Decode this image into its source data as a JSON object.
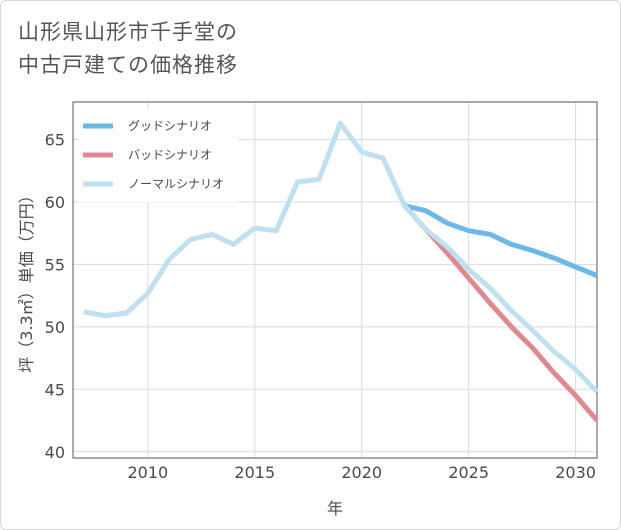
{
  "title": [
    "山形県山形市千手堂の",
    "中古戸建ての価格推移"
  ],
  "chart_data": {
    "type": "line",
    "xlabel": "年",
    "ylabel": "坪（3.3㎡）単価（万円）",
    "xlim": [
      2006.5,
      2031
    ],
    "ylim": [
      39.5,
      68
    ],
    "xticks": [
      2010,
      2015,
      2020,
      2025,
      2030
    ],
    "yticks": [
      40,
      45,
      50,
      55,
      60,
      65
    ],
    "grid": true,
    "legend_position": "top-left",
    "series": [
      {
        "name": "グッドシナリオ",
        "color": "#6cb8ea",
        "x": [
          2022,
          2023,
          2024,
          2025,
          2026,
          2027,
          2028,
          2029,
          2030,
          2031
        ],
        "y": [
          59.7,
          59.3,
          58.3,
          57.7,
          57.4,
          56.6,
          56.1,
          55.5,
          54.8,
          54.1
        ]
      },
      {
        "name": "バッドシナリオ",
        "color": "#e08890",
        "x": [
          2022,
          2023,
          2024,
          2025,
          2026,
          2027,
          2028,
          2029,
          2030,
          2031
        ],
        "y": [
          59.7,
          57.8,
          55.9,
          53.9,
          51.9,
          50.0,
          48.3,
          46.3,
          44.5,
          42.5
        ]
      },
      {
        "name": "ノーマルシナリオ",
        "color": "#bfe0ee",
        "x": [
          2007,
          2008,
          2009,
          2010,
          2011,
          2012,
          2013,
          2014,
          2015,
          2016,
          2017,
          2018,
          2019,
          2020,
          2021,
          2022,
          2023,
          2024,
          2025,
          2026,
          2027,
          2028,
          2029,
          2030,
          2031
        ],
        "y": [
          51.2,
          50.9,
          51.1,
          52.7,
          55.4,
          57.0,
          57.4,
          56.6,
          57.9,
          57.7,
          61.6,
          61.8,
          66.3,
          64.0,
          63.5,
          59.7,
          57.8,
          56.4,
          54.6,
          53.1,
          51.3,
          49.7,
          48.0,
          46.6,
          44.8
        ]
      }
    ]
  }
}
